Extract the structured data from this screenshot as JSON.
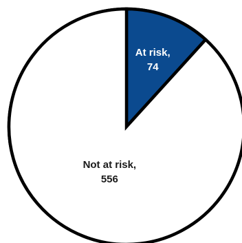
{
  "chart_data": {
    "type": "pie",
    "slices": [
      {
        "label": "At risk",
        "value": 74,
        "display_label": "At risk,",
        "display_value": "74",
        "fill": "#0b4a8f",
        "text_color": "#ffffff"
      },
      {
        "label": "Not at risk",
        "value": 556,
        "display_label": "Not at risk,",
        "display_value": "556",
        "fill": "#ffffff",
        "text_color": "#1a1a1a"
      }
    ],
    "start_angle": "12 o'clock",
    "direction": "clockwise",
    "outline_color": "#000000"
  }
}
